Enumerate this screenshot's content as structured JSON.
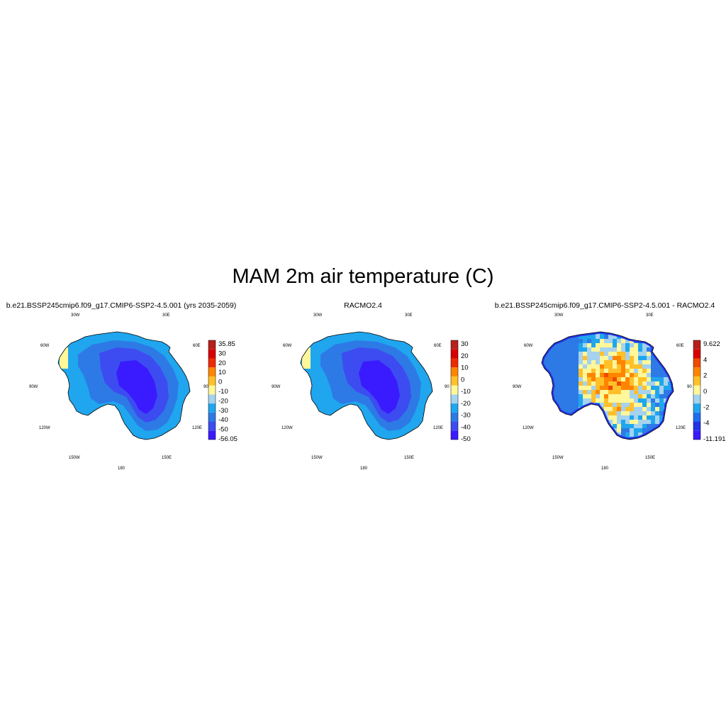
{
  "figure": {
    "title": "MAM 2m air temperature (C)"
  },
  "panels": [
    {
      "title": "b.e21.BSSP245cmip6.f09_g17.CMIP6-SSP2-4.5.001 (yrs 2035-2059)",
      "colorbar": {
        "colors": [
          "#3a1bff",
          "#3d4cf0",
          "#2d7ae6",
          "#1fa6ee",
          "#a5d2ee",
          "#fff799",
          "#ffc02a",
          "#ff8500",
          "#ee2a00",
          "#d80000",
          "#b8201a"
        ],
        "labels": [
          "35.85",
          "30",
          "20",
          "10",
          "0",
          "-10",
          "-20",
          "-30",
          "-40",
          "-50",
          "-56.05"
        ]
      },
      "map": {
        "colors": [
          "#1fa6ee",
          "#2d7ae6",
          "#3d4cf0",
          "#3a1bff"
        ],
        "style": "cold"
      }
    },
    {
      "title": "RACMO2.4",
      "colorbar": {
        "colors": [
          "#3a1bff",
          "#3d4cf0",
          "#2d7ae6",
          "#1fa6ee",
          "#a5d2ee",
          "#fff799",
          "#ffc02a",
          "#ff8500",
          "#ee2a00",
          "#d80000",
          "#b8201a"
        ],
        "labels": [
          "30",
          "20",
          "10",
          "0",
          "-10",
          "-20",
          "-30",
          "-40",
          "-50"
        ]
      },
      "map": {
        "colors": [
          "#1fa6ee",
          "#2d7ae6",
          "#3d4cf0",
          "#3a1bff"
        ],
        "style": "cold"
      }
    },
    {
      "title": "b.e21.BSSP245cmip6.f09_g17.CMIP6-SSP2-4.5.001 - RACMO2.4",
      "colorbar": {
        "colors": [
          "#3a1bff",
          "#2434e8",
          "#1f6ef0",
          "#1fa6ee",
          "#a5d2ee",
          "#fff799",
          "#ffc02a",
          "#ff8500",
          "#ee4a00",
          "#d80000",
          "#b8201a"
        ],
        "labels": [
          "9.622",
          "4",
          "2",
          "0",
          "-2",
          "-4",
          "-11.191"
        ]
      },
      "map": {
        "colors": [
          "#d82020",
          "#ee4a00",
          "#ff8500",
          "#ffc02a",
          "#fff799",
          "#a5d2ee",
          "#1fa6ee",
          "#2d7ae6"
        ],
        "style": "diff"
      }
    }
  ],
  "longitude_labels": {
    "top_left": "30W",
    "top_right": "30E",
    "upper_left": "60W",
    "upper_right": "60E",
    "mid_left": "90W",
    "mid_right": "90",
    "lower_left": "120W",
    "lower_right": "120E",
    "bottom_left": "150W",
    "bottom_right": "150E",
    "bottom": "180"
  }
}
